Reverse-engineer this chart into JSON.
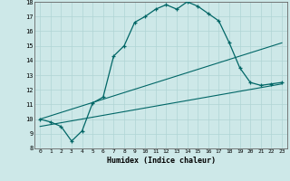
{
  "xlabel": "Humidex (Indice chaleur)",
  "bg_color": "#cde8e8",
  "grid_color": "#b0d4d4",
  "line_color": "#006666",
  "xlim": [
    -0.5,
    23.5
  ],
  "ylim": [
    8,
    18
  ],
  "xticks": [
    0,
    1,
    2,
    3,
    4,
    5,
    6,
    7,
    8,
    9,
    10,
    11,
    12,
    13,
    14,
    15,
    16,
    17,
    18,
    19,
    20,
    21,
    22,
    23
  ],
  "yticks": [
    8,
    9,
    10,
    11,
    12,
    13,
    14,
    15,
    16,
    17,
    18
  ],
  "curve_x": [
    0,
    1,
    2,
    3,
    4,
    5,
    6,
    7,
    8,
    9,
    10,
    11,
    12,
    13,
    14,
    15,
    16,
    17,
    18,
    19,
    20,
    21,
    22,
    23
  ],
  "curve_y": [
    10.0,
    9.8,
    9.5,
    8.5,
    9.2,
    11.1,
    11.5,
    14.3,
    15.0,
    16.6,
    17.0,
    17.5,
    17.8,
    17.5,
    18.0,
    17.7,
    17.2,
    16.7,
    15.2,
    13.5,
    12.5,
    12.3,
    12.4,
    12.5
  ],
  "line2_x": [
    0,
    23
  ],
  "line2_y": [
    10.0,
    15.2
  ],
  "line3_x": [
    0,
    23
  ],
  "line3_y": [
    9.5,
    12.4
  ]
}
